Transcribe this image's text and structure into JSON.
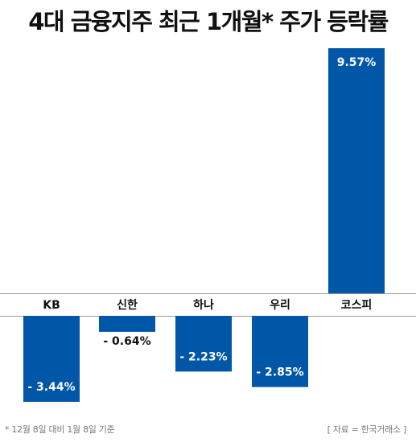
{
  "title": "4대 금융지주 최근 1개월* 주가 등락률",
  "footnote": "*  12월 8일 대비 1월 8일 기준",
  "source": "[ 자료 = 한국거래소 ]",
  "colors": {
    "bar": "#0057a8",
    "axis": "#999999",
    "label_text": "#111111",
    "inner_label": "#ffffff"
  },
  "chart_data": {
    "type": "bar",
    "title": "4대 금융지주 최근 1개월* 주가 등락률",
    "categories": [
      "KB",
      "신한",
      "하나",
      "우리",
      "코스피"
    ],
    "values": [
      -3.44,
      -0.64,
      -2.23,
      -2.85,
      9.57
    ],
    "data_labels": [
      "- 3.44%",
      "- 0.64%",
      "- 2.23%",
      "- 2.85%",
      "9.57%"
    ],
    "unit": "%",
    "ylim": [
      -4.0,
      10.0
    ],
    "grid": false,
    "legend": "none"
  }
}
